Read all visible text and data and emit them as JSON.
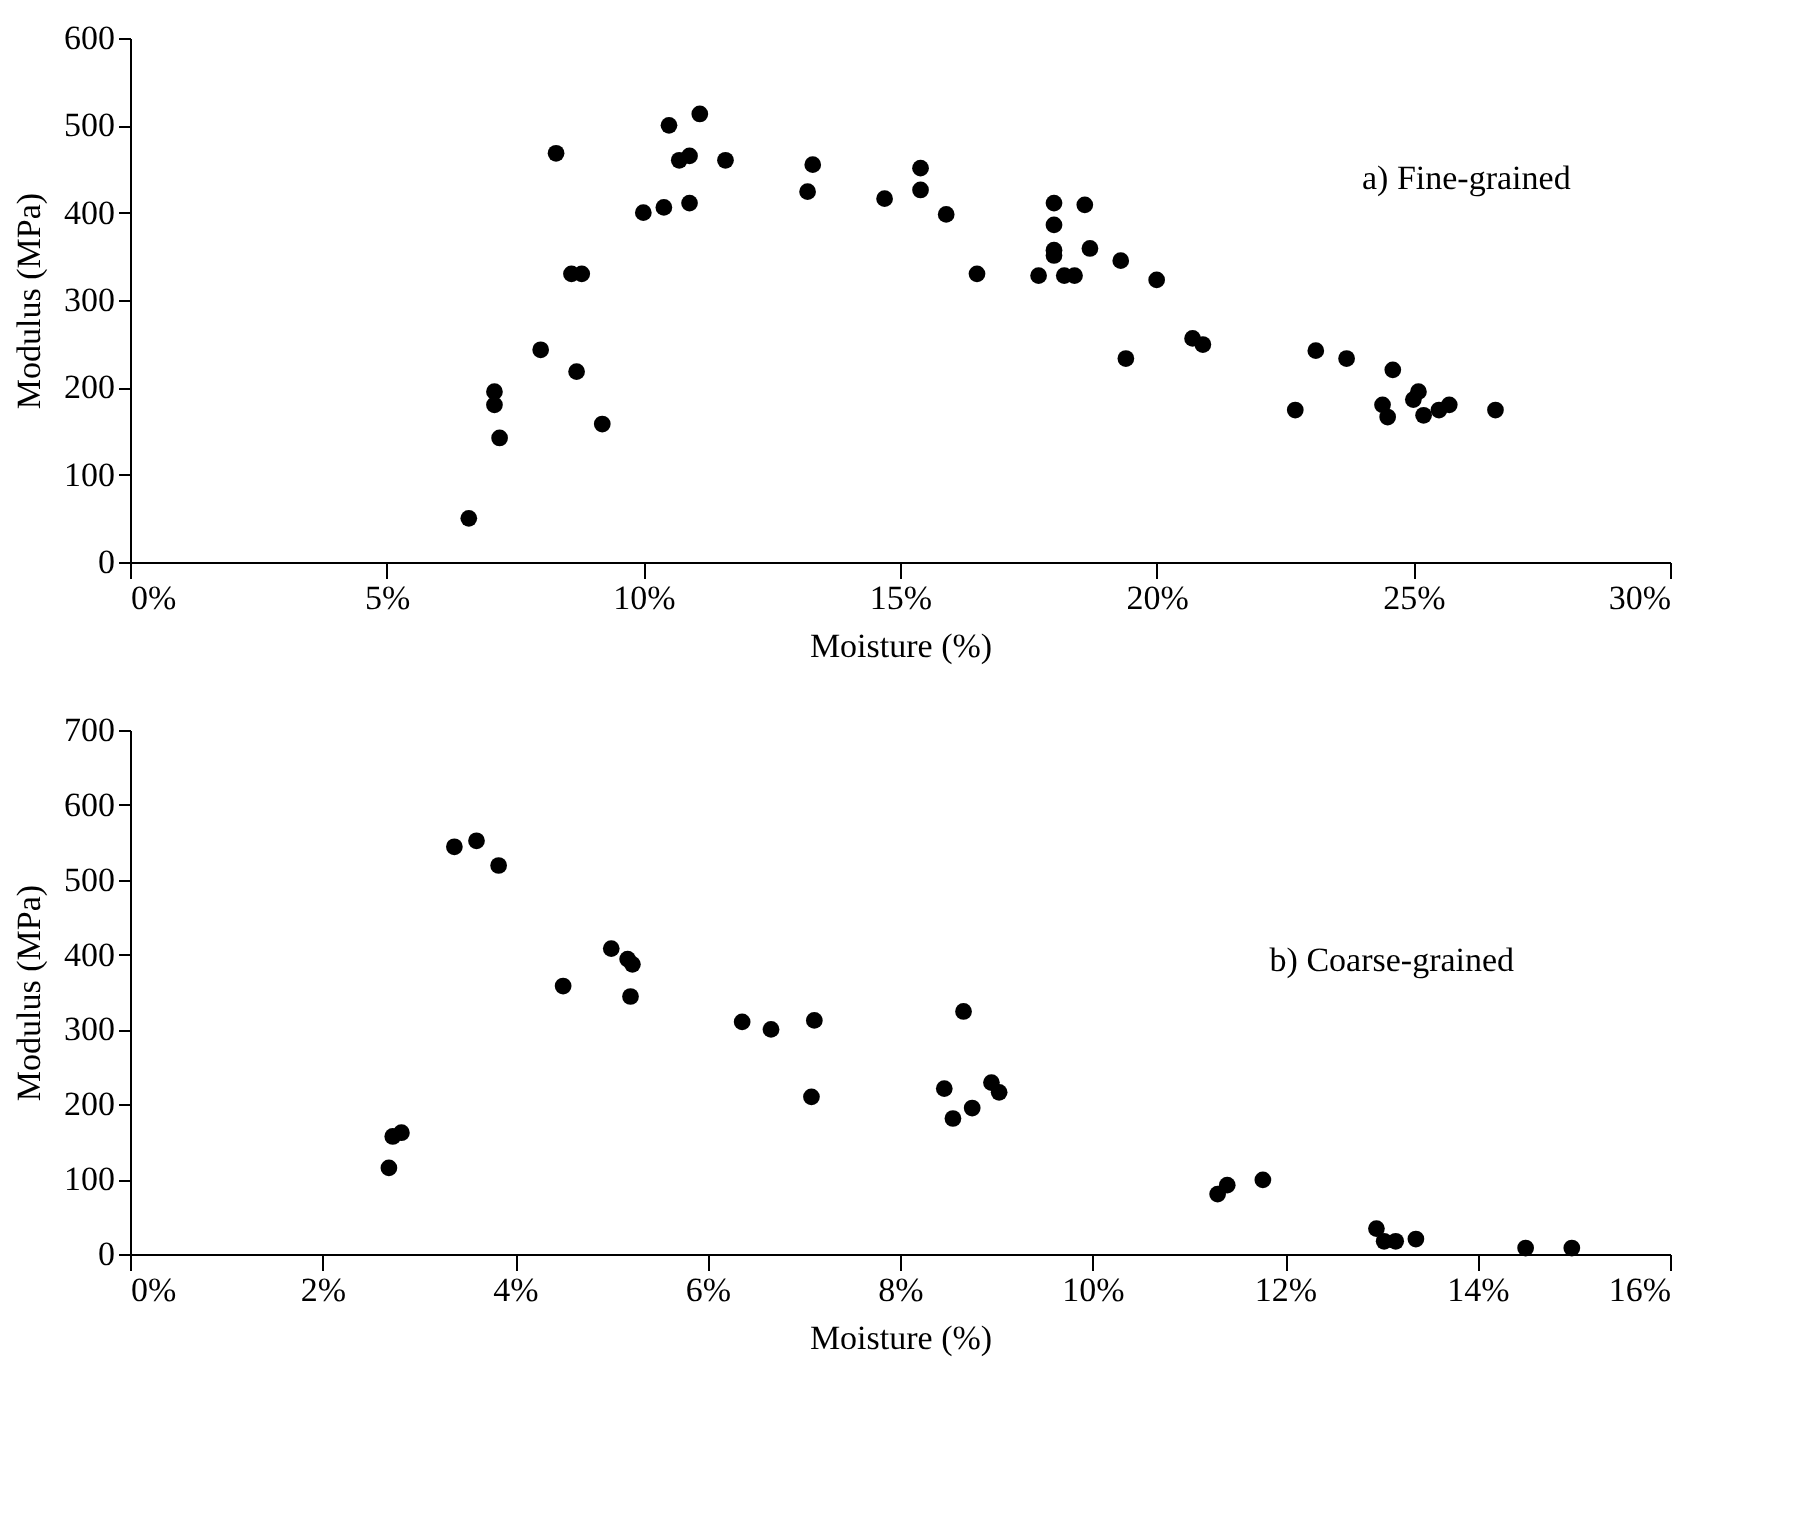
{
  "chart_data": [
    {
      "type": "scatter",
      "xlabel": "Moisture (%)",
      "ylabel": "Modulus (MPa)",
      "annotations": [
        "a) Fine-grained"
      ],
      "marker": "circle",
      "grid": false,
      "xlim": [
        0,
        30
      ],
      "ylim": [
        0,
        600
      ],
      "xticks": [
        {
          "value": 0,
          "label": "0%"
        },
        {
          "value": 5,
          "label": "5%"
        },
        {
          "value": 10,
          "label": "10%"
        },
        {
          "value": 15,
          "label": "15%"
        },
        {
          "value": 20,
          "label": "20%"
        },
        {
          "value": 25,
          "label": "25%"
        },
        {
          "value": 30,
          "label": "30%"
        }
      ],
      "yticks": [
        0,
        100,
        200,
        300,
        400,
        500,
        600
      ],
      "series": [
        {
          "color": "#000000",
          "x": [
            6.6,
            7.1,
            7.1,
            7.2,
            8.0,
            8.3,
            8.6,
            8.8,
            8.7,
            9.2,
            10.0,
            10.4,
            10.5,
            10.9,
            10.7,
            10.9,
            11.1,
            11.6,
            13.2,
            13.3,
            14.7,
            15.4,
            15.4,
            15.9,
            16.5,
            17.7,
            18.0,
            18.0,
            18.0,
            18.0,
            18.2,
            18.4,
            18.6,
            18.7,
            19.3,
            19.4,
            20.0,
            20.7,
            20.9,
            22.7,
            23.1,
            23.7,
            24.6,
            24.4,
            24.5,
            25.0,
            25.1,
            25.2,
            25.5,
            25.7,
            26.6
          ],
          "values": [
            50,
            195,
            180,
            142,
            243,
            468,
            330,
            330,
            218,
            158,
            400,
            406,
            500,
            411,
            460,
            465,
            513,
            460,
            424,
            455,
            416,
            426,
            451,
            398,
            330,
            328,
            411,
            386,
            357,
            351,
            328,
            328,
            409,
            359,
            345,
            233,
            323,
            256,
            249,
            174,
            242,
            233,
            220,
            180,
            166,
            186,
            195,
            168,
            174,
            180,
            174
          ]
        }
      ]
    },
    {
      "type": "scatter",
      "xlabel": "Moisture (%)",
      "ylabel": "Modulus (MPa)",
      "annotations": [
        "b) Coarse-grained"
      ],
      "marker": "circle",
      "grid": false,
      "xlim": [
        0,
        16
      ],
      "ylim": [
        0,
        700
      ],
      "xticks": [
        {
          "value": 0,
          "label": "0%"
        },
        {
          "value": 2,
          "label": "2%"
        },
        {
          "value": 4,
          "label": "4%"
        },
        {
          "value": 6,
          "label": "6%"
        },
        {
          "value": 8,
          "label": "8%"
        },
        {
          "value": 10,
          "label": "10%"
        },
        {
          "value": 12,
          "label": "12%"
        },
        {
          "value": 14,
          "label": "14%"
        },
        {
          "value": 16,
          "label": "16%"
        }
      ],
      "yticks": [
        0,
        100,
        200,
        300,
        400,
        500,
        600,
        700
      ],
      "series": [
        {
          "color": "#000000",
          "x": [
            2.69,
            2.73,
            2.82,
            3.37,
            3.6,
            3.83,
            4.5,
            5.0,
            5.17,
            5.22,
            5.2,
            6.36,
            6.66,
            7.11,
            7.08,
            8.66,
            8.46,
            8.55,
            8.75,
            8.95,
            9.03,
            11.3,
            11.4,
            11.77,
            12.95,
            13.03,
            13.15,
            13.36,
            14.5,
            14.98
          ],
          "values": [
            115,
            157,
            162,
            544,
            552,
            519,
            358,
            408,
            394,
            387,
            344,
            310,
            300,
            312,
            210,
            324,
            221,
            181,
            195,
            229,
            216,
            80,
            92,
            99,
            34,
            17,
            17,
            20,
            8,
            8
          ]
        }
      ]
    }
  ]
}
